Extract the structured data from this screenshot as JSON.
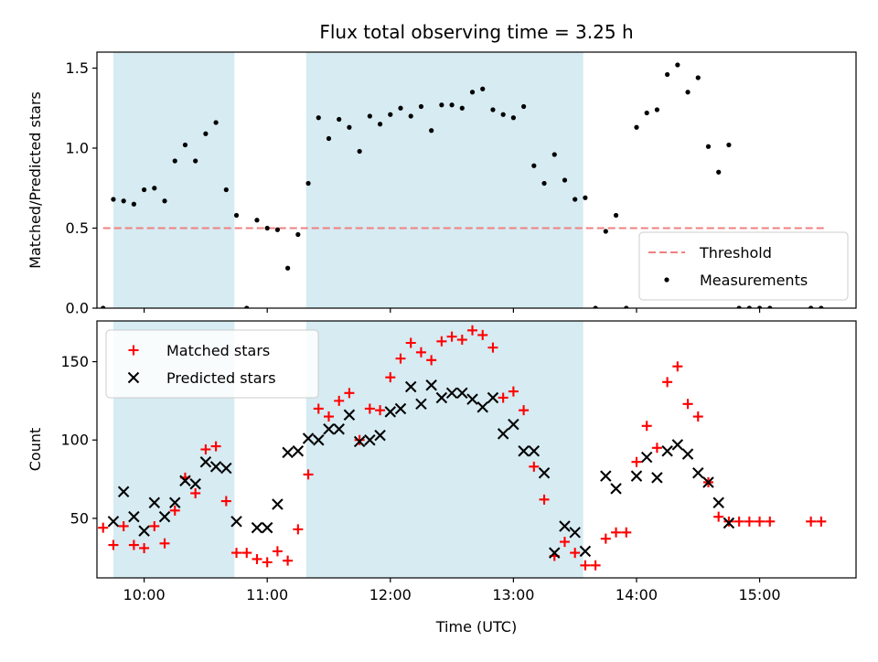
{
  "chart_data": {
    "title": "Flux total observing time = 3.25 h",
    "xlabel": "Time (UTC)",
    "x_unit": "hours UTC",
    "xlim": [
      "09:37",
      "15:47"
    ],
    "xticks": [
      "10:00",
      "11:00",
      "12:00",
      "13:00",
      "14:00",
      "15:00"
    ],
    "shaded_intervals": [
      [
        "09:45",
        "10:44"
      ],
      [
        "11:19",
        "13:34"
      ]
    ],
    "shade_color": "#add8e6",
    "panels": [
      {
        "type": "scatter",
        "ylabel": "Matched/Predicted stars",
        "ylim": [
          0,
          1.6
        ],
        "yticks": [
          "0.0",
          "0.5",
          "1.0",
          "1.5"
        ],
        "legend_position": "lower-right",
        "threshold": {
          "name": "Threshold",
          "value": 0.5,
          "x_range": [
            "09:40",
            "15:33"
          ],
          "color": "#f08080"
        },
        "series": [
          {
            "name": "Measurements",
            "color": "#000000",
            "marker": "dot",
            "points": [
              [
                "09:40",
                0.0
              ],
              [
                "09:45",
                0.68
              ],
              [
                "09:50",
                0.67
              ],
              [
                "09:55",
                0.65
              ],
              [
                "10:00",
                0.74
              ],
              [
                "10:05",
                0.75
              ],
              [
                "10:10",
                0.67
              ],
              [
                "10:15",
                0.92
              ],
              [
                "10:20",
                1.02
              ],
              [
                "10:25",
                0.92
              ],
              [
                "10:30",
                1.09
              ],
              [
                "10:35",
                1.16
              ],
              [
                "10:40",
                0.74
              ],
              [
                "10:45",
                0.58
              ],
              [
                "10:50",
                0.0
              ],
              [
                "10:55",
                0.55
              ],
              [
                "11:00",
                0.5
              ],
              [
                "11:05",
                0.49
              ],
              [
                "11:10",
                0.25
              ],
              [
                "11:15",
                0.46
              ],
              [
                "11:20",
                0.78
              ],
              [
                "11:25",
                1.19
              ],
              [
                "11:30",
                1.06
              ],
              [
                "11:35",
                1.18
              ],
              [
                "11:40",
                1.13
              ],
              [
                "11:45",
                0.98
              ],
              [
                "11:50",
                1.2
              ],
              [
                "11:55",
                1.15
              ],
              [
                "12:00",
                1.21
              ],
              [
                "12:05",
                1.25
              ],
              [
                "12:10",
                1.2
              ],
              [
                "12:15",
                1.26
              ],
              [
                "12:20",
                1.11
              ],
              [
                "12:25",
                1.27
              ],
              [
                "12:30",
                1.27
              ],
              [
                "12:35",
                1.25
              ],
              [
                "12:40",
                1.35
              ],
              [
                "12:45",
                1.37
              ],
              [
                "12:50",
                1.24
              ],
              [
                "12:55",
                1.21
              ],
              [
                "13:00",
                1.19
              ],
              [
                "13:05",
                1.26
              ],
              [
                "13:10",
                0.89
              ],
              [
                "13:15",
                0.78
              ],
              [
                "13:20",
                0.96
              ],
              [
                "13:25",
                0.8
              ],
              [
                "13:30",
                0.68
              ],
              [
                "13:35",
                0.69
              ],
              [
                "13:40",
                0.0
              ],
              [
                "13:45",
                0.48
              ],
              [
                "13:50",
                0.58
              ],
              [
                "13:55",
                0.0
              ],
              [
                "14:00",
                1.13
              ],
              [
                "14:05",
                1.22
              ],
              [
                "14:10",
                1.24
              ],
              [
                "14:15",
                1.46
              ],
              [
                "14:20",
                1.52
              ],
              [
                "14:25",
                1.35
              ],
              [
                "14:30",
                1.44
              ],
              [
                "14:35",
                1.01
              ],
              [
                "14:40",
                0.85
              ],
              [
                "14:45",
                1.02
              ],
              [
                "14:50",
                0.0
              ],
              [
                "14:55",
                0.0
              ],
              [
                "15:00",
                0.0
              ],
              [
                "15:05",
                0.0
              ],
              [
                "15:25",
                0.0
              ],
              [
                "15:30",
                0.0
              ]
            ]
          }
        ]
      },
      {
        "type": "scatter",
        "ylabel": "Count",
        "ylim": [
          12,
          176
        ],
        "yticks": [
          "50",
          "100",
          "150"
        ],
        "legend_position": "upper-left",
        "series": [
          {
            "name": "Matched stars",
            "color": "#ff0000",
            "marker": "plus",
            "points": [
              [
                "09:40",
                44
              ],
              [
                "09:45",
                33
              ],
              [
                "09:50",
                45
              ],
              [
                "09:55",
                33
              ],
              [
                "10:00",
                31
              ],
              [
                "10:05",
                45
              ],
              [
                "10:10",
                34
              ],
              [
                "10:15",
                55
              ],
              [
                "10:20",
                76
              ],
              [
                "10:25",
                66
              ],
              [
                "10:30",
                94
              ],
              [
                "10:35",
                96
              ],
              [
                "10:40",
                61
              ],
              [
                "10:45",
                28
              ],
              [
                "10:50",
                28
              ],
              [
                "10:55",
                24
              ],
              [
                "11:00",
                22
              ],
              [
                "11:05",
                29
              ],
              [
                "11:10",
                23
              ],
              [
                "11:15",
                43
              ],
              [
                "11:20",
                78
              ],
              [
                "11:25",
                120
              ],
              [
                "11:30",
                115
              ],
              [
                "11:35",
                125
              ],
              [
                "11:40",
                130
              ],
              [
                "11:45",
                100
              ],
              [
                "11:50",
                120
              ],
              [
                "11:55",
                119
              ],
              [
                "12:00",
                140
              ],
              [
                "12:05",
                152
              ],
              [
                "12:10",
                162
              ],
              [
                "12:15",
                156
              ],
              [
                "12:20",
                151
              ],
              [
                "12:25",
                163
              ],
              [
                "12:30",
                166
              ],
              [
                "12:35",
                164
              ],
              [
                "12:40",
                170
              ],
              [
                "12:45",
                167
              ],
              [
                "12:50",
                159
              ],
              [
                "12:55",
                127
              ],
              [
                "13:00",
                131
              ],
              [
                "13:05",
                119
              ],
              [
                "13:10",
                83
              ],
              [
                "13:15",
                62
              ],
              [
                "13:20",
                26
              ],
              [
                "13:25",
                35
              ],
              [
                "13:30",
                28
              ],
              [
                "13:35",
                20
              ],
              [
                "13:40",
                20
              ],
              [
                "13:45",
                37
              ],
              [
                "13:50",
                41
              ],
              [
                "13:55",
                41
              ],
              [
                "14:00",
                86
              ],
              [
                "14:05",
                109
              ],
              [
                "14:10",
                95
              ],
              [
                "14:15",
                137
              ],
              [
                "14:20",
                147
              ],
              [
                "14:25",
                123
              ],
              [
                "14:30",
                115
              ],
              [
                "14:35",
                73
              ],
              [
                "14:40",
                51
              ],
              [
                "14:45",
                48
              ],
              [
                "14:50",
                48
              ],
              [
                "14:55",
                48
              ],
              [
                "15:00",
                48
              ],
              [
                "15:05",
                48
              ],
              [
                "15:25",
                48
              ],
              [
                "15:30",
                48
              ]
            ]
          },
          {
            "name": "Predicted stars",
            "color": "#000000",
            "marker": "x",
            "points": [
              [
                "09:45",
                48
              ],
              [
                "09:50",
                67
              ],
              [
                "09:55",
                51
              ],
              [
                "10:00",
                42
              ],
              [
                "10:05",
                60
              ],
              [
                "10:10",
                51
              ],
              [
                "10:15",
                60
              ],
              [
                "10:20",
                74
              ],
              [
                "10:25",
                72
              ],
              [
                "10:30",
                86
              ],
              [
                "10:35",
                83
              ],
              [
                "10:40",
                82
              ],
              [
                "10:45",
                48
              ],
              [
                "10:55",
                44
              ],
              [
                "11:00",
                44
              ],
              [
                "11:05",
                59
              ],
              [
                "11:10",
                92
              ],
              [
                "11:15",
                93
              ],
              [
                "11:20",
                101
              ],
              [
                "11:25",
                100
              ],
              [
                "11:30",
                107
              ],
              [
                "11:35",
                107
              ],
              [
                "11:40",
                116
              ],
              [
                "11:45",
                99
              ],
              [
                "11:50",
                100
              ],
              [
                "11:55",
                103
              ],
              [
                "12:00",
                118
              ],
              [
                "12:05",
                120
              ],
              [
                "12:10",
                134
              ],
              [
                "12:15",
                123
              ],
              [
                "12:20",
                135
              ],
              [
                "12:25",
                127
              ],
              [
                "12:30",
                130
              ],
              [
                "12:35",
                130
              ],
              [
                "12:40",
                126
              ],
              [
                "12:45",
                121
              ],
              [
                "12:50",
                127
              ],
              [
                "12:55",
                104
              ],
              [
                "13:00",
                110
              ],
              [
                "13:05",
                93
              ],
              [
                "13:10",
                93
              ],
              [
                "13:15",
                79
              ],
              [
                "13:20",
                28
              ],
              [
                "13:25",
                45
              ],
              [
                "13:30",
                41
              ],
              [
                "13:35",
                29
              ],
              [
                "13:45",
                77
              ],
              [
                "13:50",
                69
              ],
              [
                "14:00",
                77
              ],
              [
                "14:05",
                89
              ],
              [
                "14:10",
                76
              ],
              [
                "14:15",
                93
              ],
              [
                "14:20",
                97
              ],
              [
                "14:25",
                91
              ],
              [
                "14:30",
                79
              ],
              [
                "14:35",
                73
              ],
              [
                "14:40",
                60
              ],
              [
                "14:45",
                47
              ]
            ]
          }
        ]
      }
    ]
  }
}
